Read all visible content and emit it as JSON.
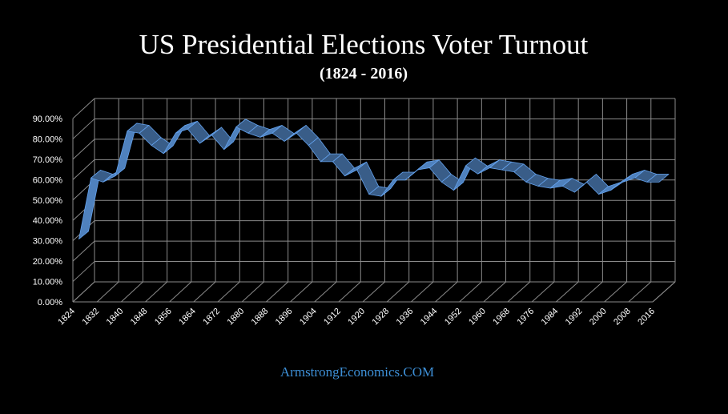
{
  "chart_data": {
    "type": "area",
    "title": "US Presidential Elections Voter Turnout",
    "subtitle": "(1824 - 2016)",
    "xlabel": "",
    "ylabel": "",
    "ylim": [
      0,
      90
    ],
    "y_ticks": [
      "0.00%",
      "10.00%",
      "20.00%",
      "30.00%",
      "40.00%",
      "50.00%",
      "60.00%",
      "70.00%",
      "80.00%",
      "90.00%"
    ],
    "x_tick_labels": [
      "1824",
      "1832",
      "1840",
      "1848",
      "1856",
      "1864",
      "1872",
      "1880",
      "1888",
      "1896",
      "1904",
      "1912",
      "1920",
      "1928",
      "1936",
      "1944",
      "1952",
      "1960",
      "1968",
      "1976",
      "1984",
      "1992",
      "2000",
      "2008",
      "2016"
    ],
    "x": [
      1824,
      1828,
      1832,
      1836,
      1840,
      1844,
      1848,
      1852,
      1856,
      1860,
      1864,
      1868,
      1872,
      1876,
      1880,
      1884,
      1888,
      1892,
      1896,
      1900,
      1904,
      1908,
      1912,
      1916,
      1920,
      1924,
      1928,
      1932,
      1936,
      1940,
      1944,
      1948,
      1952,
      1956,
      1960,
      1964,
      1968,
      1972,
      1976,
      1980,
      1984,
      1988,
      1992,
      1996,
      2000,
      2004,
      2008,
      2012,
      2016
    ],
    "series": [
      {
        "values": [
          27,
          57,
          55,
          58,
          80,
          79,
          73,
          69,
          79,
          81,
          74,
          78,
          71,
          82,
          79,
          77,
          79,
          75,
          79,
          73,
          65,
          65,
          58,
          61,
          49,
          48,
          56,
          56,
          61,
          62,
          55,
          51,
          63,
          59,
          62,
          61,
          60,
          55,
          53,
          52,
          53,
          50,
          55,
          49,
          51,
          55,
          57,
          55,
          55
        ],
        "color": "#4f81bd"
      }
    ],
    "grid": true,
    "style": "3d-ribbon"
  },
  "footer": {
    "source": "ArmstrongEconomics.COM"
  },
  "colors": {
    "background": "#000000",
    "ribbon": "#4f81bd",
    "grid": "#8a8a8a",
    "source_text": "#3d8fd6"
  }
}
